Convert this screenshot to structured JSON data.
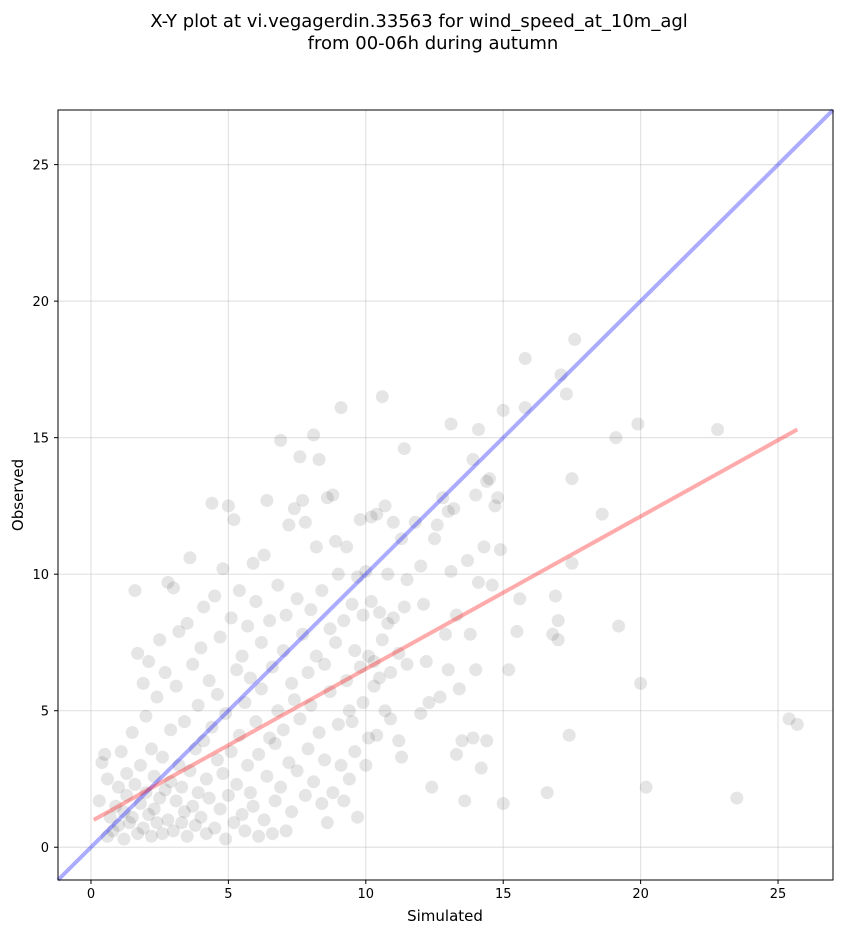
{
  "chart_data": {
    "type": "scatter",
    "title": [
      "X-Y plot at vi.vegagerdin.33563 for wind_speed_at_10m_agl",
      "from 00-06h during autumn"
    ],
    "xlabel": "Simulated",
    "ylabel": "Observed",
    "xlim": [
      -1.2,
      27.0
    ],
    "ylim": [
      -1.2,
      27.0
    ],
    "xticks": [
      0,
      5,
      10,
      15,
      20,
      25
    ],
    "yticks": [
      0,
      5,
      10,
      15,
      20,
      25
    ],
    "grid": true,
    "point_style": {
      "color": "#000000",
      "opacity": 0.1
    },
    "identity_line": {
      "name": "",
      "color": "#0000ff",
      "opacity": 0.33,
      "x": [
        -1.2,
        27.0
      ],
      "y": [
        -1.2,
        27.0
      ]
    },
    "regression_line": {
      "name": "",
      "color": "#ff0000",
      "opacity": 0.33,
      "x": [
        0.1,
        25.7
      ],
      "y": [
        1.0,
        15.3
      ]
    },
    "points": [
      [
        0.3,
        1.7
      ],
      [
        0.4,
        3.1
      ],
      [
        0.5,
        3.4
      ],
      [
        0.6,
        2.5
      ],
      [
        0.6,
        0.4
      ],
      [
        0.7,
        1.1
      ],
      [
        0.8,
        0.6
      ],
      [
        0.9,
        1.5
      ],
      [
        1.0,
        2.2
      ],
      [
        1.0,
        0.8
      ],
      [
        1.1,
        3.5
      ],
      [
        1.2,
        1.3
      ],
      [
        1.2,
        0.3
      ],
      [
        1.3,
        2.7
      ],
      [
        1.3,
        1.9
      ],
      [
        1.4,
        0.9
      ],
      [
        1.5,
        4.2
      ],
      [
        1.5,
        1.1
      ],
      [
        1.6,
        9.4
      ],
      [
        1.6,
        2.3
      ],
      [
        1.7,
        7.1
      ],
      [
        1.7,
        0.5
      ],
      [
        1.8,
        1.6
      ],
      [
        1.8,
        3.0
      ],
      [
        1.9,
        6.0
      ],
      [
        1.9,
        0.7
      ],
      [
        2.0,
        2.0
      ],
      [
        2.0,
        4.8
      ],
      [
        2.1,
        1.2
      ],
      [
        2.1,
        6.8
      ],
      [
        2.2,
        0.4
      ],
      [
        2.2,
        3.6
      ],
      [
        2.3,
        2.6
      ],
      [
        2.3,
        1.4
      ],
      [
        2.4,
        5.5
      ],
      [
        2.4,
        0.9
      ],
      [
        2.5,
        7.6
      ],
      [
        2.5,
        1.8
      ],
      [
        2.6,
        3.3
      ],
      [
        2.6,
        0.5
      ],
      [
        2.7,
        2.1
      ],
      [
        2.7,
        6.4
      ],
      [
        2.8,
        9.7
      ],
      [
        2.8,
        1.0
      ],
      [
        2.9,
        4.3
      ],
      [
        2.9,
        2.4
      ],
      [
        3.0,
        9.5
      ],
      [
        3.0,
        0.6
      ],
      [
        3.1,
        1.7
      ],
      [
        3.1,
        5.9
      ],
      [
        3.2,
        3.0
      ],
      [
        3.2,
        7.9
      ],
      [
        3.3,
        0.9
      ],
      [
        3.3,
        2.2
      ],
      [
        3.4,
        4.6
      ],
      [
        3.4,
        1.3
      ],
      [
        3.5,
        8.2
      ],
      [
        3.5,
        0.4
      ],
      [
        3.6,
        10.6
      ],
      [
        3.6,
        2.8
      ],
      [
        3.7,
        1.5
      ],
      [
        3.7,
        6.7
      ],
      [
        3.8,
        3.6
      ],
      [
        3.8,
        0.8
      ],
      [
        3.9,
        5.2
      ],
      [
        3.9,
        2.0
      ],
      [
        4.0,
        7.3
      ],
      [
        4.0,
        1.1
      ],
      [
        4.1,
        3.9
      ],
      [
        4.1,
        8.8
      ],
      [
        4.2,
        0.5
      ],
      [
        4.2,
        2.5
      ],
      [
        4.3,
        6.1
      ],
      [
        4.3,
        1.8
      ],
      [
        4.4,
        12.6
      ],
      [
        4.4,
        4.4
      ],
      [
        4.5,
        9.2
      ],
      [
        4.5,
        0.7
      ],
      [
        4.6,
        3.2
      ],
      [
        4.6,
        5.6
      ],
      [
        4.7,
        1.4
      ],
      [
        4.7,
        7.7
      ],
      [
        4.8,
        10.2
      ],
      [
        4.8,
        2.7
      ],
      [
        4.9,
        0.3
      ],
      [
        4.9,
        4.9
      ],
      [
        5.0,
        12.5
      ],
      [
        5.0,
        1.9
      ],
      [
        5.1,
        8.4
      ],
      [
        5.1,
        3.5
      ],
      [
        5.2,
        12.0
      ],
      [
        5.2,
        0.9
      ],
      [
        5.3,
        6.5
      ],
      [
        5.3,
        2.3
      ],
      [
        5.4,
        9.4
      ],
      [
        5.4,
        4.1
      ],
      [
        5.5,
        1.2
      ],
      [
        5.5,
        7.0
      ],
      [
        5.6,
        5.3
      ],
      [
        5.6,
        0.6
      ],
      [
        5.7,
        8.1
      ],
      [
        5.7,
        3.0
      ],
      [
        5.8,
        2.0
      ],
      [
        5.8,
        6.2
      ],
      [
        5.9,
        10.4
      ],
      [
        5.9,
        1.5
      ],
      [
        6.0,
        4.6
      ],
      [
        6.0,
        9.0
      ],
      [
        6.1,
        0.4
      ],
      [
        6.1,
        3.4
      ],
      [
        6.2,
        7.5
      ],
      [
        6.2,
        5.8
      ],
      [
        6.3,
        10.7
      ],
      [
        6.3,
        1.0
      ],
      [
        6.4,
        12.7
      ],
      [
        6.4,
        2.6
      ],
      [
        6.5,
        8.3
      ],
      [
        6.5,
        4.0
      ],
      [
        6.6,
        6.6
      ],
      [
        6.6,
        0.5
      ],
      [
        6.7,
        3.8
      ],
      [
        6.7,
        1.7
      ],
      [
        6.8,
        9.6
      ],
      [
        6.8,
        5.0
      ],
      [
        6.9,
        14.9
      ],
      [
        6.9,
        2.2
      ],
      [
        7.0,
        7.2
      ],
      [
        7.0,
        4.3
      ],
      [
        7.1,
        0.6
      ],
      [
        7.1,
        8.5
      ],
      [
        7.2,
        11.8
      ],
      [
        7.2,
        3.1
      ],
      [
        7.3,
        6.0
      ],
      [
        7.3,
        1.3
      ],
      [
        7.4,
        12.4
      ],
      [
        7.4,
        5.4
      ],
      [
        7.5,
        2.8
      ],
      [
        7.5,
        9.1
      ],
      [
        7.6,
        14.3
      ],
      [
        7.6,
        4.7
      ],
      [
        7.7,
        12.7
      ],
      [
        7.7,
        7.8
      ],
      [
        7.8,
        11.9
      ],
      [
        7.8,
        1.9
      ],
      [
        7.9,
        6.4
      ],
      [
        7.9,
        3.6
      ],
      [
        8.0,
        8.7
      ],
      [
        8.0,
        5.2
      ],
      [
        8.1,
        15.1
      ],
      [
        8.1,
        2.4
      ],
      [
        8.2,
        11.0
      ],
      [
        8.2,
        7.0
      ],
      [
        8.3,
        14.2
      ],
      [
        8.3,
        4.2
      ],
      [
        8.4,
        9.4
      ],
      [
        8.4,
        1.6
      ],
      [
        8.5,
        6.7
      ],
      [
        8.5,
        3.2
      ],
      [
        8.6,
        12.8
      ],
      [
        8.6,
        0.9
      ],
      [
        8.7,
        8.0
      ],
      [
        8.7,
        5.7
      ],
      [
        8.8,
        12.9
      ],
      [
        8.8,
        2.0
      ],
      [
        8.9,
        11.2
      ],
      [
        8.9,
        7.5
      ],
      [
        9.0,
        4.5
      ],
      [
        9.0,
        10.0
      ],
      [
        9.1,
        16.1
      ],
      [
        9.1,
        3.0
      ],
      [
        9.2,
        8.3
      ],
      [
        9.2,
        1.7
      ],
      [
        9.3,
        11.0
      ],
      [
        9.3,
        6.1
      ],
      [
        9.4,
        5.0
      ],
      [
        9.4,
        2.5
      ],
      [
        9.5,
        8.9
      ],
      [
        9.5,
        4.6
      ],
      [
        9.6,
        7.2
      ],
      [
        9.6,
        3.5
      ],
      [
        9.7,
        9.9
      ],
      [
        9.7,
        1.1
      ],
      [
        9.8,
        6.6
      ],
      [
        9.8,
        12.0
      ],
      [
        9.9,
        8.5
      ],
      [
        9.9,
        5.3
      ],
      [
        10.0,
        3.0
      ],
      [
        10.0,
        10.1
      ],
      [
        10.1,
        7.0
      ],
      [
        10.1,
        4.0
      ],
      [
        10.2,
        12.1
      ],
      [
        10.2,
        9.0
      ],
      [
        10.3,
        6.8
      ],
      [
        10.3,
        5.9
      ],
      [
        10.4,
        12.2
      ],
      [
        10.4,
        4.1
      ],
      [
        10.5,
        8.6
      ],
      [
        10.5,
        6.2
      ],
      [
        10.6,
        16.5
      ],
      [
        10.6,
        7.6
      ],
      [
        10.7,
        12.5
      ],
      [
        10.7,
        5.0
      ],
      [
        10.8,
        10.0
      ],
      [
        10.8,
        8.2
      ],
      [
        10.9,
        6.4
      ],
      [
        10.9,
        4.7
      ],
      [
        11.0,
        11.9
      ],
      [
        11.0,
        8.4
      ],
      [
        11.2,
        7.1
      ],
      [
        11.2,
        3.9
      ],
      [
        11.3,
        11.3
      ],
      [
        11.3,
        3.3
      ],
      [
        11.4,
        14.6
      ],
      [
        11.4,
        8.8
      ],
      [
        11.5,
        9.8
      ],
      [
        11.5,
        6.7
      ],
      [
        11.8,
        11.9
      ],
      [
        12.0,
        10.3
      ],
      [
        12.0,
        4.9
      ],
      [
        12.1,
        8.9
      ],
      [
        12.2,
        6.8
      ],
      [
        12.3,
        5.3
      ],
      [
        12.4,
        2.2
      ],
      [
        12.5,
        11.3
      ],
      [
        12.6,
        11.8
      ],
      [
        12.7,
        5.5
      ],
      [
        12.8,
        12.8
      ],
      [
        12.9,
        7.8
      ],
      [
        13.0,
        12.3
      ],
      [
        13.0,
        6.5
      ],
      [
        13.1,
        15.5
      ],
      [
        13.1,
        10.1
      ],
      [
        13.2,
        12.4
      ],
      [
        13.3,
        8.5
      ],
      [
        13.3,
        3.4
      ],
      [
        13.4,
        5.8
      ],
      [
        13.5,
        3.9
      ],
      [
        13.6,
        1.7
      ],
      [
        13.7,
        10.5
      ],
      [
        13.8,
        7.8
      ],
      [
        13.9,
        14.2
      ],
      [
        13.9,
        4.0
      ],
      [
        14.0,
        12.9
      ],
      [
        14.0,
        6.5
      ],
      [
        14.1,
        15.3
      ],
      [
        14.1,
        9.7
      ],
      [
        14.2,
        2.9
      ],
      [
        14.3,
        11.0
      ],
      [
        14.4,
        13.4
      ],
      [
        14.4,
        3.9
      ],
      [
        14.5,
        13.5
      ],
      [
        14.6,
        9.6
      ],
      [
        14.7,
        12.5
      ],
      [
        14.8,
        12.8
      ],
      [
        14.9,
        10.9
      ],
      [
        15.0,
        16.0
      ],
      [
        15.0,
        1.6
      ],
      [
        15.2,
        6.5
      ],
      [
        15.5,
        7.9
      ],
      [
        15.6,
        9.1
      ],
      [
        15.8,
        17.9
      ],
      [
        15.8,
        16.1
      ],
      [
        16.6,
        2.0
      ],
      [
        16.8,
        7.8
      ],
      [
        16.9,
        9.2
      ],
      [
        17.0,
        8.3
      ],
      [
        17.0,
        7.6
      ],
      [
        17.1,
        17.3
      ],
      [
        17.3,
        16.6
      ],
      [
        17.4,
        4.1
      ],
      [
        17.5,
        13.5
      ],
      [
        17.5,
        10.4
      ],
      [
        17.6,
        18.6
      ],
      [
        18.6,
        12.2
      ],
      [
        19.1,
        15.0
      ],
      [
        19.2,
        8.1
      ],
      [
        19.9,
        15.5
      ],
      [
        20.0,
        6.0
      ],
      [
        20.2,
        2.2
      ],
      [
        22.8,
        15.3
      ],
      [
        23.5,
        1.8
      ],
      [
        25.4,
        4.7
      ],
      [
        25.7,
        4.5
      ]
    ]
  }
}
